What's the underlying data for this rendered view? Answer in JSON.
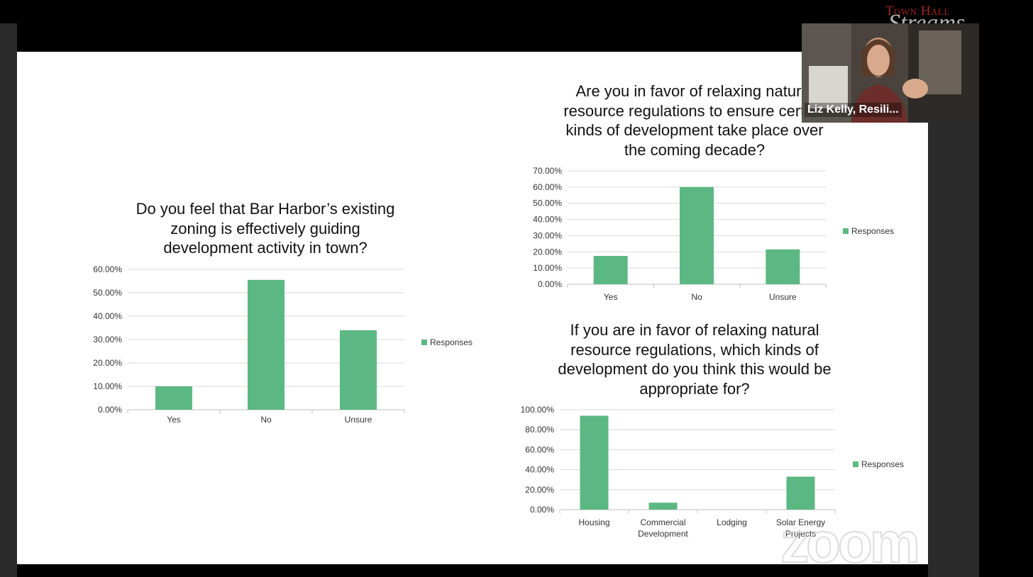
{
  "branding": {
    "top_text": "Town Hall",
    "script_text": "Streams"
  },
  "participant": {
    "name": "Liz Kelly, Resili..."
  },
  "watermark": {
    "text": "zoom"
  },
  "colors": {
    "bar": "#5bb882",
    "grid": "#d9d9d9",
    "axis": "#bfbfbf",
    "text": "#333333"
  },
  "chart_data": [
    {
      "type": "bar",
      "title": "Do you feel that Bar Harbor’s existing zoning is effectively guiding development activity in town?",
      "title_lines": [
        "Do you feel that Bar Harbor’s existing",
        "zoning is effectively guiding",
        "development activity in town?"
      ],
      "categories": [
        "Yes",
        "No",
        "Unsure"
      ],
      "category_lines": [
        [
          "Yes"
        ],
        [
          "No"
        ],
        [
          "Unsure"
        ]
      ],
      "series": [
        {
          "name": "Responses",
          "values": [
            0.1,
            0.555,
            0.34
          ]
        }
      ],
      "yticks": [
        "0.00%",
        "10.00%",
        "20.00%",
        "30.00%",
        "40.00%",
        "50.00%",
        "60.00%"
      ],
      "ylim": [
        0,
        0.6
      ],
      "legend": "right",
      "grid": true
    },
    {
      "type": "bar",
      "title": "Are you in favor of relaxing natural resource regulations to ensure certain kinds of development take place over the coming decade?",
      "title_lines": [
        "Are you in favor of relaxing natural",
        "resource regulations to ensure certain",
        "kinds of development take place over",
        "the coming decade?"
      ],
      "categories": [
        "Yes",
        "No",
        "Unsure"
      ],
      "category_lines": [
        [
          "Yes"
        ],
        [
          "No"
        ],
        [
          "Unsure"
        ]
      ],
      "series": [
        {
          "name": "Responses",
          "values": [
            0.175,
            0.6,
            0.215
          ]
        }
      ],
      "yticks": [
        "0.00%",
        "10.00%",
        "20.00%",
        "30.00%",
        "40.00%",
        "50.00%",
        "60.00%",
        "70.00%"
      ],
      "ylim": [
        0,
        0.7
      ],
      "legend": "right",
      "grid": true
    },
    {
      "type": "bar",
      "title": "If you are in favor of relaxing natural resource regulations, which kinds of development do you think this would be appropriate for?",
      "title_lines": [
        "If you are in favor of relaxing natural",
        "resource regulations, which kinds of",
        "development do you think this would be",
        "appropriate for?"
      ],
      "categories": [
        "Housing",
        "Commercial Development",
        "Lodging",
        "Solar Energy Projects"
      ],
      "category_lines": [
        [
          "Housing"
        ],
        [
          "Commercial",
          "Development"
        ],
        [
          "Lodging"
        ],
        [
          "Solar Energy",
          "Projects"
        ]
      ],
      "series": [
        {
          "name": "Responses",
          "values": [
            0.94,
            0.07,
            0.0,
            0.33
          ]
        }
      ],
      "yticks": [
        "0.00%",
        "20.00%",
        "40.00%",
        "60.00%",
        "80.00%",
        "100.00%"
      ],
      "ylim": [
        0,
        1.0
      ],
      "legend": "right",
      "grid": true
    }
  ]
}
